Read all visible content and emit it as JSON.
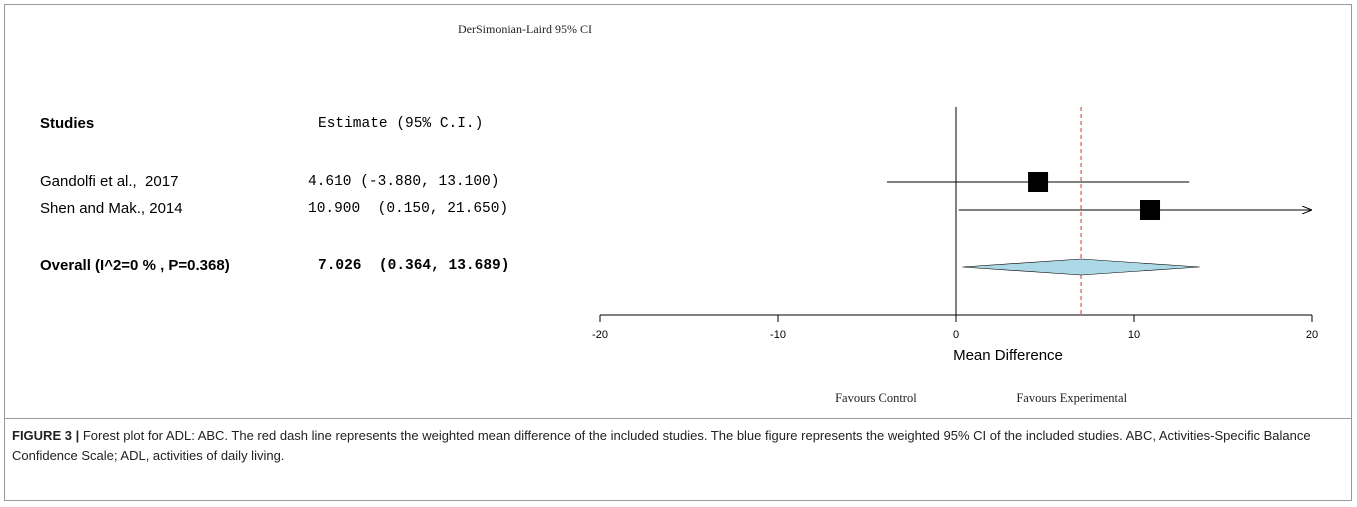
{
  "chart_data": {
    "type": "forest",
    "title": "DerSimonian-Laird 95% CI",
    "column_headers": {
      "studies": "Studies",
      "estimate": "Estimate (95% C.I.)"
    },
    "studies": [
      {
        "name": "Gandolfi et al.,  2017",
        "estimate": 4.61,
        "lower": -3.88,
        "upper": 13.1,
        "estimate_text": "4.610 (-3.880, 13.100)"
      },
      {
        "name": "Shen and Mak., 2014",
        "estimate": 10.9,
        "lower": 0.15,
        "upper": 21.65,
        "estimate_text": "10.900  (0.150, 21.650)"
      }
    ],
    "overall": {
      "label": "Overall (I^2=0 % , P=0.368)",
      "estimate": 7.026,
      "lower": 0.364,
      "upper": 13.689,
      "estimate_text": "7.026  (0.364, 13.689)"
    },
    "x_axis": {
      "label": "Mean Difference",
      "xlim": [
        -20,
        20
      ],
      "ticks": [
        -20,
        -10,
        0,
        10,
        20
      ]
    },
    "favours_left": "Favours Control",
    "favours_right": "Favours Experimental",
    "colors": {
      "reference_line": "#e03030",
      "summary_fill": "#add8e6",
      "marker": "#000000"
    }
  },
  "caption": {
    "label": "FIGURE 3 |",
    "text": " Forest plot for ADL: ABC. The red dash line represents the weighted mean difference of the included studies. The blue figure represents the weighted 95% CI of the included studies. ABC, Activities-Specific Balance Confidence Scale; ADL, activities of daily living."
  }
}
